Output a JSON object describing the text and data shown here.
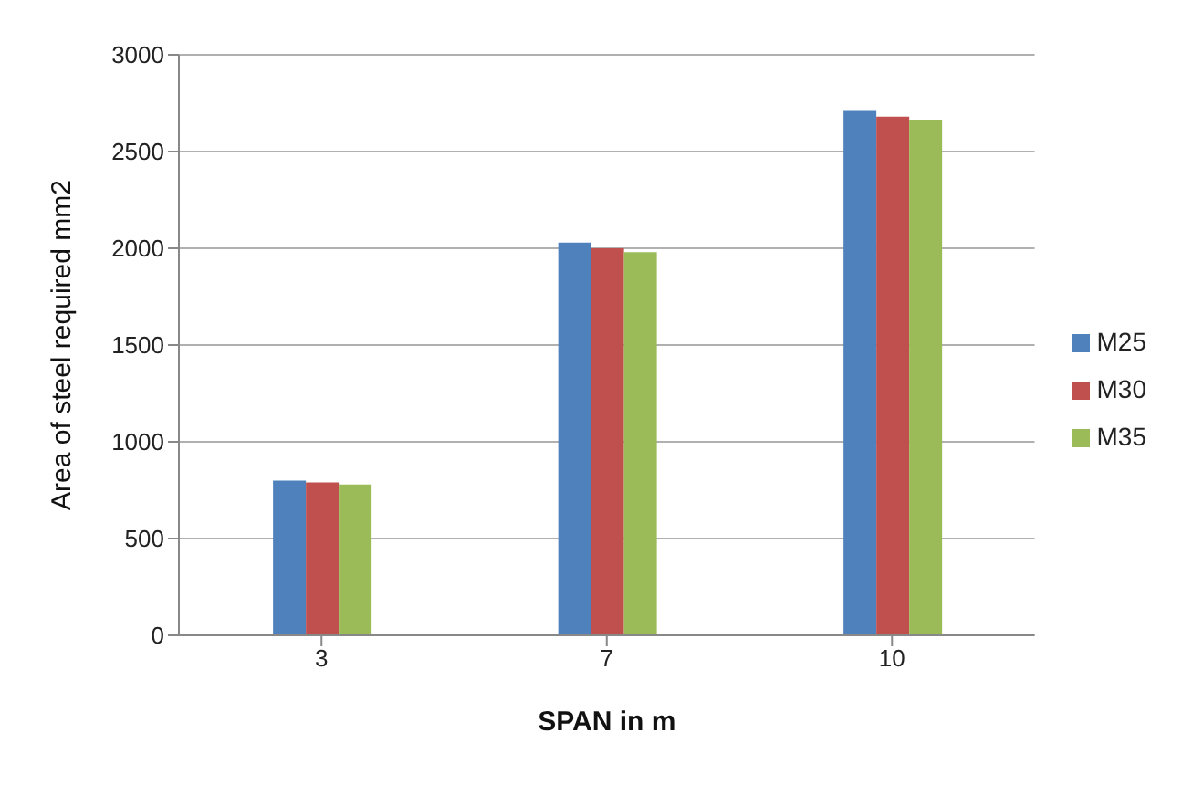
{
  "chart_data": {
    "type": "bar",
    "xlabel": "SPAN in m",
    "ylabel": "Area of steel required mm2",
    "categories": [
      "3",
      "7",
      "10"
    ],
    "series": [
      {
        "name": "M25",
        "color": "#4f81bd",
        "values": [
          800,
          2030,
          2710
        ]
      },
      {
        "name": "M30",
        "color": "#c0504d",
        "values": [
          790,
          2000,
          2680
        ]
      },
      {
        "name": "M35",
        "color": "#9bbb59",
        "values": [
          780,
          1980,
          2660
        ]
      }
    ],
    "ylim": [
      0,
      3000
    ],
    "yticks": [
      0,
      500,
      1000,
      1500,
      2000,
      2500,
      3000
    ],
    "grid": "y",
    "legend": "right"
  }
}
